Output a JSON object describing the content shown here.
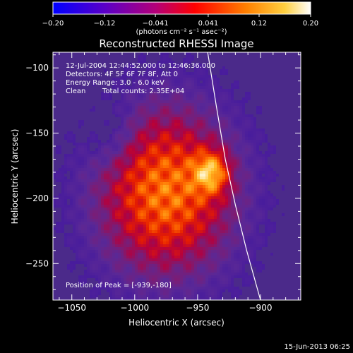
{
  "colorbar": {
    "ticks": [
      "-0.20",
      "-0.12",
      "-0.041",
      "0.041",
      "0.12",
      "0.20"
    ],
    "unit_label": "(photons cm⁻² s⁻¹ asec⁻²)",
    "vmin": -0.2,
    "vmax": 0.2
  },
  "chart_data": {
    "type": "heatmap",
    "title": "Reconstructed RHESSI Image",
    "xlabel": "Heliocentric X (arcsec)",
    "ylabel": "Heliocentric Y (arcsec)",
    "xlim": [
      -1065,
      -868
    ],
    "ylim": [
      -278,
      -88
    ],
    "x_ticks": [
      -1050,
      -1000,
      -950,
      -900
    ],
    "y_ticks": [
      -100,
      -150,
      -200,
      -250
    ],
    "x_tick_labels": [
      "−1050",
      "−1000",
      "−950",
      "−900"
    ],
    "y_tick_labels": [
      "−100",
      "−150",
      "−200",
      "−250"
    ],
    "annotations": [
      "12-Jul-2004 12:44:52.000 to 12:46:36.000",
      "Detectors: 4F 5F 6F 7F 8F, Att 0",
      "Energy Range: 3.0 - 6.0 keV",
      "Clean",
      "Total counts: 2.35E+04"
    ],
    "peak_label": "Position of Peak = [-939,-180]",
    "peak": [
      -939,
      -180
    ],
    "limb": [
      [
        -942,
        -88
      ],
      [
        -935,
        -130
      ],
      [
        -928,
        -170
      ],
      [
        -920,
        -205
      ],
      [
        -911,
        -240
      ],
      [
        -900,
        -278
      ]
    ]
  },
  "footer": {
    "timestamp": "15-Jun-2013 06:25"
  }
}
